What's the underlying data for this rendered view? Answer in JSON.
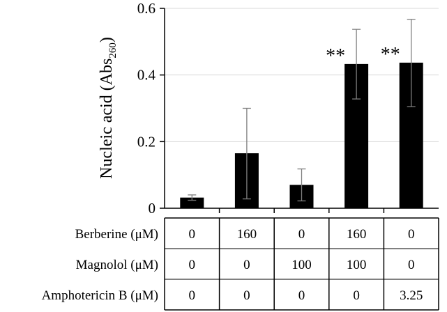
{
  "chart_data": {
    "type": "bar",
    "title": "",
    "xlabel": "",
    "ylabel": {
      "main": "Nucleic acid (Abs",
      "subscript": "260",
      "close": ")"
    },
    "ylim": [
      0,
      0.6
    ],
    "yticks": [
      0,
      0.2,
      0.4,
      0.6
    ],
    "ytick_labels": [
      "0",
      "0.2",
      "0.4",
      "0.6"
    ],
    "grid": true,
    "bar_color": "#000000",
    "values": [
      0.032,
      0.165,
      0.07,
      0.433,
      0.437
    ],
    "error_low": [
      0.024,
      0.028,
      0.022,
      0.328,
      0.305
    ],
    "error_high": [
      0.04,
      0.3,
      0.118,
      0.537,
      0.567
    ],
    "significance": [
      "",
      "",
      "",
      "**",
      "**"
    ],
    "conditions": [
      {
        "label": "Berberine (μM)",
        "values": [
          "0",
          "160",
          "0",
          "160",
          "0"
        ]
      },
      {
        "label": "Magnolol (μM)",
        "values": [
          "0",
          "0",
          "100",
          "100",
          "0"
        ]
      },
      {
        "label": "Amphotericin B (μM)",
        "values": [
          "0",
          "0",
          "0",
          "0",
          "3.25"
        ]
      }
    ]
  }
}
